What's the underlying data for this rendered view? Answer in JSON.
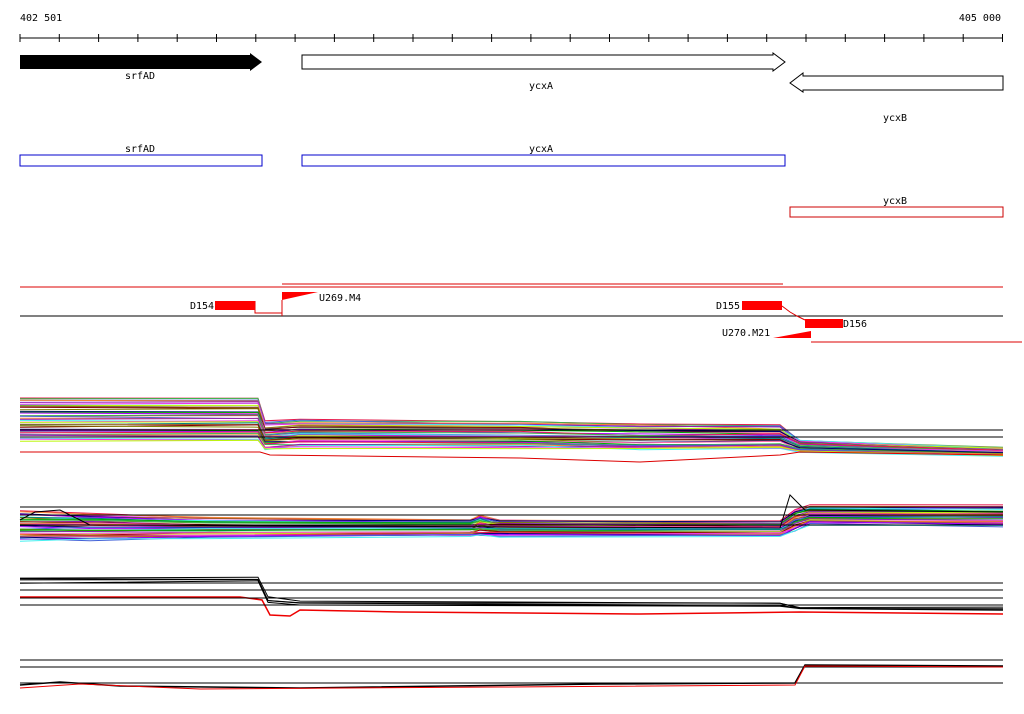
{
  "ruler": {
    "start": "402 501",
    "end": "405 000"
  },
  "genes": [
    {
      "label": "srfAD"
    },
    {
      "label": "ycxA"
    },
    {
      "label": "ycxB"
    }
  ],
  "gene_models": [
    {
      "label": "srfAD"
    },
    {
      "label": "ycxA"
    },
    {
      "label": "ycxB"
    }
  ],
  "probes": [
    {
      "label": "D154"
    },
    {
      "label": "U269.M4"
    },
    {
      "label": "D155"
    },
    {
      "label": "D156"
    },
    {
      "label": "U270.M21"
    }
  ]
}
